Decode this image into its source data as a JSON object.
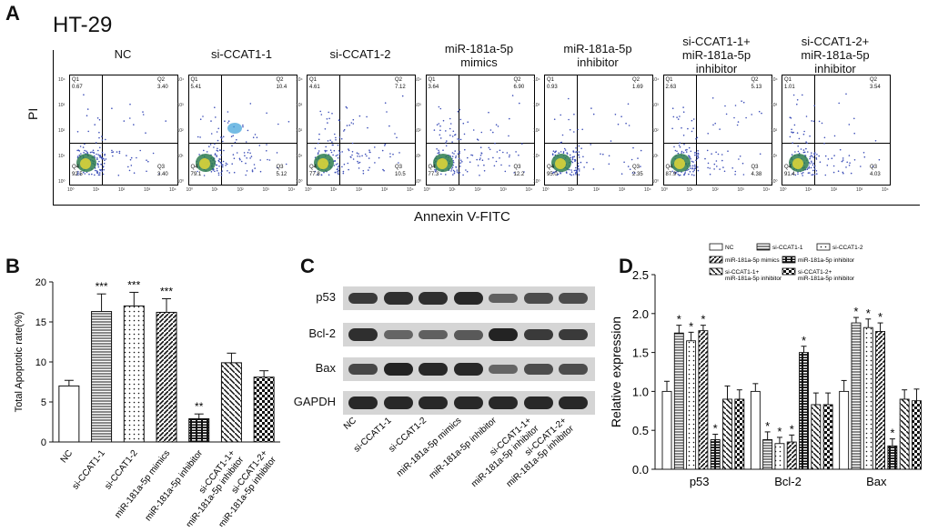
{
  "panelA": {
    "letter": "A",
    "cell_line": "HT-29",
    "ylabel": "PI",
    "xlabel": "Annexin V-FITC",
    "plots": [
      {
        "title": "NC",
        "q1": "0.67",
        "q2": "3.40",
        "q3": "3.40",
        "q4": "92.5"
      },
      {
        "title": "si-CCAT1-1",
        "q1": "5.41",
        "q2": "10.4",
        "q3": "5.12",
        "q4": "79.1"
      },
      {
        "title": "si-CCAT1-2",
        "q1": "4.61",
        "q2": "7.12",
        "q3": "10.5",
        "q4": "77.8"
      },
      {
        "title": "miR-181a-5p\nmimics",
        "q1": "3.64",
        "q2": "6.90",
        "q3": "12.2",
        "q4": "77.3"
      },
      {
        "title": "miR-181a-5p\ninhibitor",
        "q1": "0.93",
        "q2": "1.69",
        "q3": "2.35",
        "q4": "95.0"
      },
      {
        "title": "si-CCAT1-1+\nmiR-181a-5p\ninhibitor",
        "q1": "2.63",
        "q2": "5.13",
        "q3": "4.38",
        "q4": "87.9"
      },
      {
        "title": "si-CCAT1-2+\nmiR-181a-5p\ninhibitor",
        "q1": "1.01",
        "q2": "3.54",
        "q3": "4.03",
        "q4": "91.4"
      }
    ],
    "quad_names": [
      "Q1",
      "Q2",
      "Q3",
      "Q4"
    ],
    "axis_ticks": [
      "10⁰",
      "10¹",
      "10²",
      "10³",
      "10⁴"
    ]
  },
  "panelC": {
    "letter": "C",
    "proteins": [
      "p53",
      "Bcl-2",
      "Bax",
      "GAPDH"
    ],
    "lanes": [
      "NC",
      "si-CCAT1-1",
      "si-CCAT1-2",
      "miR-181a-5p mimics",
      "miR-181a-5p inhibitor",
      "si-CCAT1-1+\nmiR-181a-5p inhibitor",
      "si-CCAT1-2+\nmiR-181a-5p inhibitor"
    ]
  },
  "chart_data": [
    {
      "panel": "B",
      "type": "bar",
      "ylabel": "Total Apoptotic rate(%)",
      "ylim": [
        0,
        20
      ],
      "yticks": [
        0,
        5,
        10,
        15,
        20
      ],
      "categories": [
        "NC",
        "si-CCAT1-1",
        "si-CCAT1-2",
        "miR-181a-5p mimics",
        "miR-181a-5p inhibitor",
        "si-CCAT1-1+\nmiR-181a-5p inhibitor",
        "si-CCAT1-2+\nmiR-181a-5p inhibitor"
      ],
      "values": [
        7.0,
        16.3,
        17.0,
        16.2,
        2.9,
        9.9,
        8.1
      ],
      "errors": [
        0.7,
        2.2,
        1.7,
        1.7,
        0.6,
        1.2,
        0.8
      ],
      "annotations": [
        "",
        "***",
        "***",
        "***",
        "**",
        "",
        ""
      ]
    },
    {
      "panel": "D",
      "type": "bar",
      "ylabel": "Relative expression",
      "ylim": [
        0,
        2.5
      ],
      "yticks": [
        "0.0",
        "0.5",
        "1.0",
        "1.5",
        "2.0",
        "2.5"
      ],
      "categories": [
        "p53",
        "Bcl-2",
        "Bax"
      ],
      "legend": [
        "NC",
        "si-CCAT1-1",
        "si-CCAT1-2",
        "miR-181a-5p mimics",
        "miR-181a-5p inhibitor",
        "si-CCAT1-1+\nmiR-181a-5p inhibitor",
        "si-CCAT1-2+\nmiR-181a-5p inhibitor"
      ],
      "series": [
        {
          "name": "NC",
          "values": [
            1.0,
            1.0,
            1.0
          ],
          "errors": [
            0.13,
            0.1,
            0.14
          ],
          "stars": [
            "",
            "",
            ""
          ]
        },
        {
          "name": "si-CCAT1-1",
          "values": [
            1.75,
            0.38,
            1.88
          ],
          "errors": [
            0.1,
            0.1,
            0.07
          ],
          "stars": [
            "*",
            "*",
            "*"
          ]
        },
        {
          "name": "si-CCAT1-2",
          "values": [
            1.65,
            0.33,
            1.82
          ],
          "errors": [
            0.11,
            0.08,
            0.11
          ],
          "stars": [
            "*",
            "*",
            "*"
          ]
        },
        {
          "name": "miR-181a-5p mimics",
          "values": [
            1.78,
            0.35,
            1.77
          ],
          "errors": [
            0.07,
            0.09,
            0.11
          ],
          "stars": [
            "*",
            "*",
            "*"
          ]
        },
        {
          "name": "miR-181a-5p inhibitor",
          "values": [
            0.38,
            1.5,
            0.3
          ],
          "errors": [
            0.07,
            0.08,
            0.09
          ],
          "stars": [
            "*",
            "*",
            "*"
          ]
        },
        {
          "name": "si-CCAT1-1+\nmiR-181a-5p inhibitor",
          "values": [
            0.9,
            0.83,
            0.9
          ],
          "errors": [
            0.17,
            0.15,
            0.12
          ],
          "stars": [
            "",
            "",
            ""
          ]
        },
        {
          "name": "si-CCAT1-2+\nmiR-181a-5p inhibitor",
          "values": [
            0.9,
            0.83,
            0.88
          ],
          "errors": [
            0.12,
            0.15,
            0.15
          ],
          "stars": [
            "",
            "",
            ""
          ]
        }
      ]
    }
  ],
  "colors": {
    "ink": "#111111",
    "band": "#1d1d1d",
    "blot_bg": "#d5d5d5"
  }
}
